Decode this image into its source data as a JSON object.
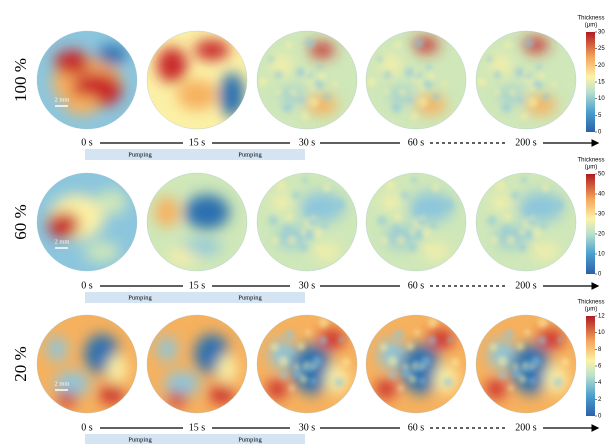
{
  "rows": [
    {
      "label": "100 %",
      "times": [
        "0 s",
        "15 s",
        "30 s",
        "60 s",
        "200 s"
      ],
      "phases": [
        "Pumping",
        "Pumping"
      ],
      "scale_bar": "2 mm",
      "colorbar": {
        "title": "Thickness",
        "unit": "(μm)",
        "ticks": [
          0,
          5,
          10,
          15,
          20,
          25,
          30
        ]
      }
    },
    {
      "label": "60 %",
      "times": [
        "0 s",
        "15 s",
        "30 s",
        "60 s",
        "200 s"
      ],
      "phases": [
        "Pumping",
        "Pumping"
      ],
      "scale_bar": "2 mm",
      "colorbar": {
        "title": "Thickness",
        "unit": "(μm)",
        "ticks": [
          0,
          10,
          20,
          30,
          40,
          50
        ]
      }
    },
    {
      "label": "20 %",
      "times": [
        "0 s",
        "15 s",
        "30 s",
        "60 s",
        "200 s"
      ],
      "phases": [
        "Pumping",
        "Pumping"
      ],
      "scale_bar": "2 mm",
      "colorbar": {
        "title": "Thickness",
        "unit": "(μm)",
        "ticks": [
          0,
          2,
          4,
          6,
          8,
          10,
          12
        ]
      }
    }
  ]
}
